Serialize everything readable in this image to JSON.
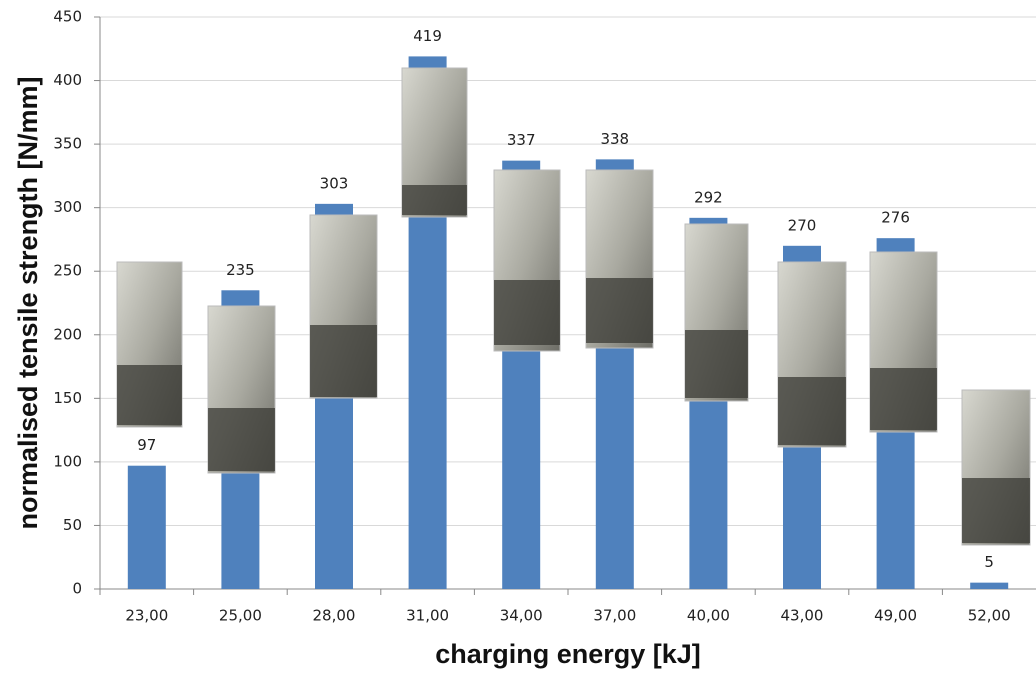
{
  "chart_data": {
    "type": "bar",
    "x_label": "charging energy [kJ]",
    "y_label": "normalised tensile strength [N/mm]",
    "categories": [
      "23,00",
      "25,00",
      "28,00",
      "31,00",
      "34,00",
      "37,00",
      "40,00",
      "43,00",
      "49,00",
      "52,00"
    ],
    "values": [
      97,
      235,
      303,
      419,
      337,
      338,
      292,
      270,
      276,
      5
    ],
    "color": "#4f81bd",
    "ylim": [
      0,
      450
    ],
    "yticks": [
      0,
      50,
      100,
      150,
      200,
      250,
      300,
      350,
      400,
      450
    ],
    "grid": true
  }
}
